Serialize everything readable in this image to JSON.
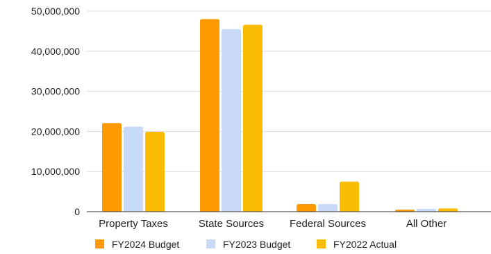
{
  "chart_data": {
    "type": "bar",
    "categories": [
      "Property Taxes",
      "State Sources",
      "Federal Sources",
      "All Other"
    ],
    "series": [
      {
        "name": "FY2024 Budget",
        "color": "#ff9900",
        "values": [
          22100000,
          48000000,
          1900000,
          500000
        ]
      },
      {
        "name": "FY2023 Budget",
        "color": "#c9daf8",
        "values": [
          21200000,
          45500000,
          1900000,
          700000
        ]
      },
      {
        "name": "FY2022 Actual",
        "color": "#fbbc04",
        "values": [
          19900000,
          46600000,
          7500000,
          800000
        ]
      }
    ],
    "y_ticks": [
      0,
      10000000,
      20000000,
      30000000,
      40000000,
      50000000
    ],
    "y_tick_labels": [
      "0",
      "10,000,000",
      "20,000,000",
      "30,000,000",
      "40,000,000",
      "50,000,000"
    ],
    "ylim": [
      0,
      50000000
    ],
    "grid": true,
    "legend_position": "bottom",
    "gridline_color": "#d9d9d9",
    "axis_color": "#333333"
  }
}
